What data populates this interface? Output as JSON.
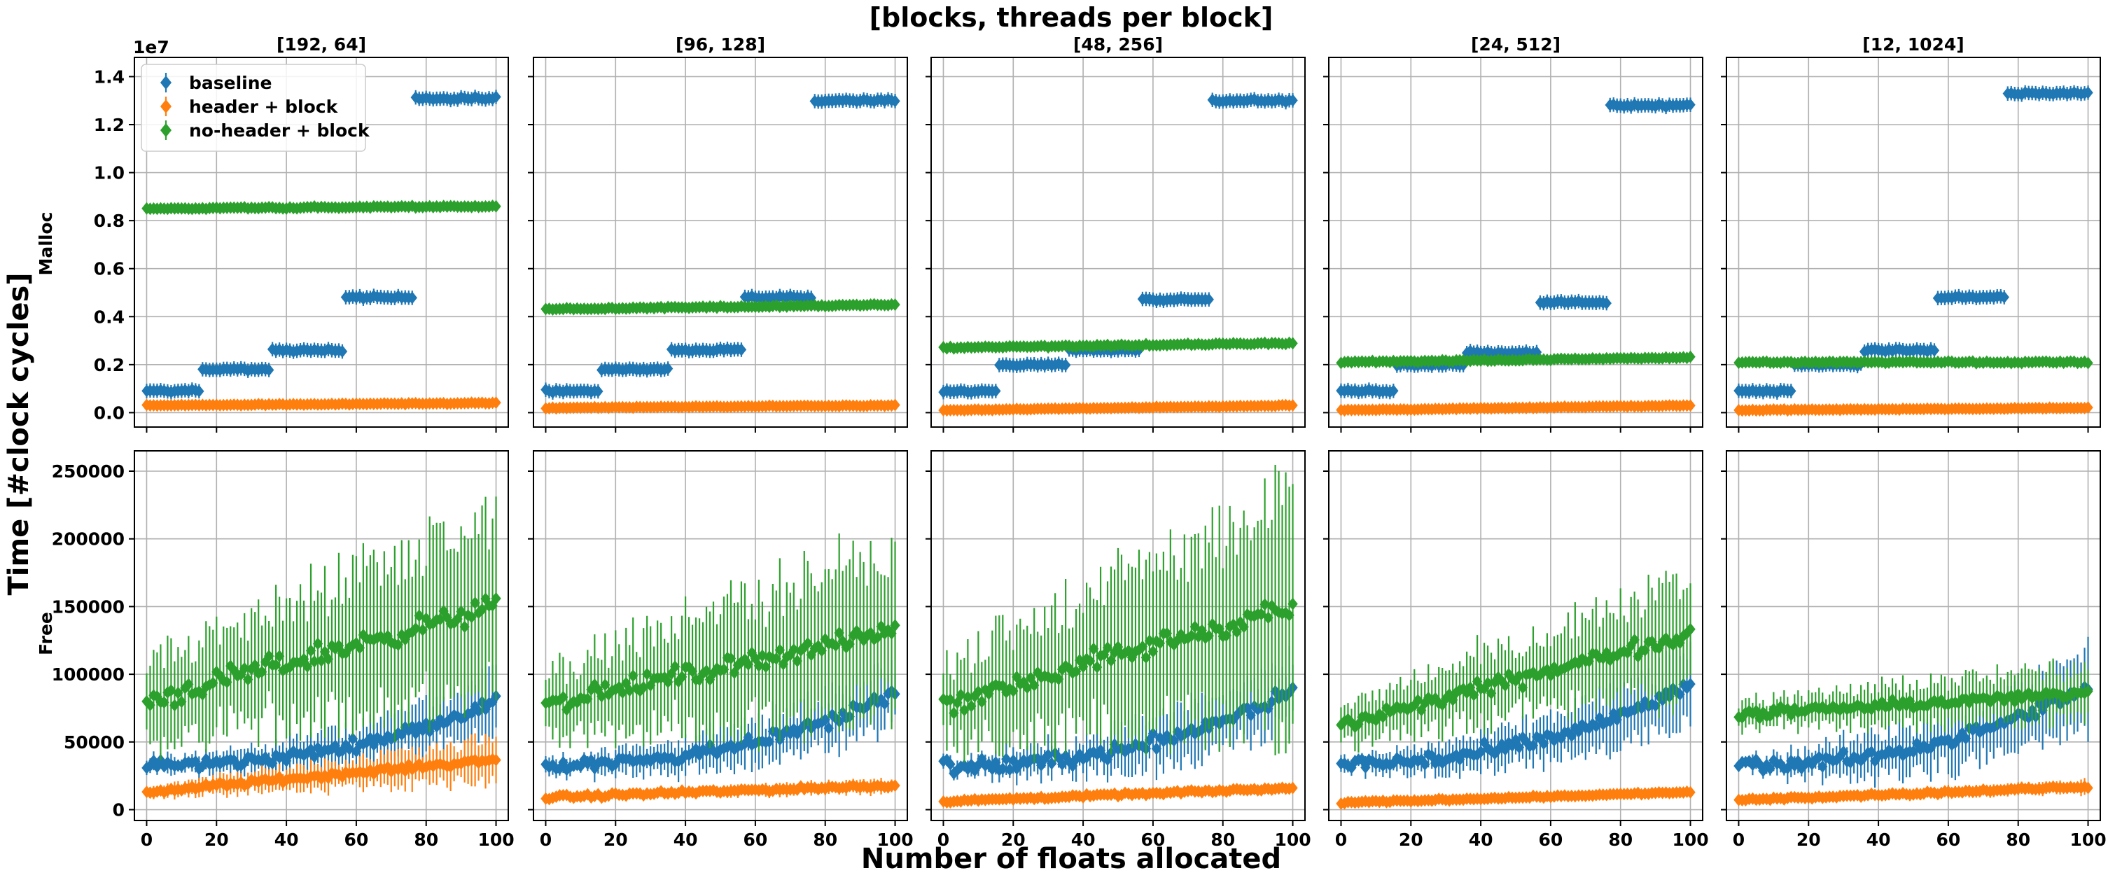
{
  "figure": {
    "suptitle": "[blocks, threads per block]",
    "xlabel": "Number of floats allocated",
    "ylabel": "Time [#clock cycles]",
    "row_labels": [
      "Malloc",
      "Free"
    ],
    "col_titles": [
      "[192, 64]",
      "[96, 128]",
      "[48, 256]",
      "[24, 512]",
      "[12, 1024]"
    ],
    "malloc_offset_label": "1e7"
  },
  "chart_data": {
    "type": "scatter",
    "errorbars": true,
    "grid": true,
    "legend_position": "top-left",
    "series": [
      {
        "name": "baseline",
        "color": "#1f77b4"
      },
      {
        "name": "header + block",
        "color": "#ff7f0e"
      },
      {
        "name": "no-header + block",
        "color": "#2ca02c"
      }
    ],
    "x": {
      "range": [
        0,
        100
      ],
      "step": 1,
      "ticks": [
        0,
        20,
        40,
        60,
        80,
        100
      ],
      "xlim": [
        -3.5,
        103.5
      ]
    },
    "malloc": {
      "ylim": [
        -0.06,
        1.48
      ],
      "y_scale_label": "1e7",
      "yticks": [
        0.0,
        0.2,
        0.4,
        0.6,
        0.8,
        1.0,
        1.2,
        1.4
      ],
      "ytick_labels": [
        "0.0",
        "0.2",
        "0.4",
        "0.6",
        "0.8",
        "1.0",
        "1.2",
        "1.4"
      ],
      "panels": [
        {
          "title": "[192, 64]",
          "baseline_steps": [
            [
              0,
              16,
              0.09
            ],
            [
              16,
              36,
              0.18
            ],
            [
              36,
              57,
              0.26
            ],
            [
              57,
              77,
              0.48
            ],
            [
              77,
              101,
              1.31
            ]
          ],
          "header_block": [
            0.03,
            0.04
          ],
          "noheader_block": [
            0.85,
            0.86
          ],
          "yerr": {
            "baseline": 0.03,
            "header_block": 0.01,
            "noheader_block": 0.015
          }
        },
        {
          "title": "[96, 128]",
          "baseline_steps": [
            [
              0,
              16,
              0.09
            ],
            [
              16,
              36,
              0.18
            ],
            [
              36,
              57,
              0.26
            ],
            [
              57,
              77,
              0.48
            ],
            [
              77,
              101,
              1.3
            ]
          ],
          "header_block": [
            0.02,
            0.03
          ],
          "noheader_block": [
            0.43,
            0.45
          ],
          "yerr": {
            "baseline": 0.03,
            "header_block": 0.01,
            "noheader_block": 0.01
          }
        },
        {
          "title": "[48, 256]",
          "baseline_steps": [
            [
              0,
              16,
              0.09
            ],
            [
              16,
              36,
              0.2
            ],
            [
              36,
              57,
              0.26
            ],
            [
              57,
              77,
              0.47
            ],
            [
              77,
              101,
              1.3
            ]
          ],
          "header_block": [
            0.01,
            0.03
          ],
          "noheader_block": [
            0.27,
            0.29
          ],
          "yerr": {
            "baseline": 0.03,
            "header_block": 0.01,
            "noheader_block": 0.01
          }
        },
        {
          "title": "[24, 512]",
          "baseline_steps": [
            [
              0,
              16,
              0.09
            ],
            [
              16,
              36,
              0.2
            ],
            [
              36,
              57,
              0.25
            ],
            [
              57,
              77,
              0.46
            ],
            [
              77,
              101,
              1.28
            ]
          ],
          "header_block": [
            0.01,
            0.03
          ],
          "noheader_block": [
            0.21,
            0.23
          ],
          "yerr": {
            "baseline": 0.03,
            "header_block": 0.01,
            "noheader_block": 0.01
          }
        },
        {
          "title": "[12, 1024]",
          "baseline_steps": [
            [
              0,
              16,
              0.09
            ],
            [
              16,
              36,
              0.2
            ],
            [
              36,
              57,
              0.26
            ],
            [
              57,
              77,
              0.48
            ],
            [
              77,
              101,
              1.33
            ]
          ],
          "header_block": [
            0.01,
            0.02
          ],
          "noheader_block": [
            0.21,
            0.21
          ],
          "yerr": {
            "baseline": 0.03,
            "header_block": 0.01,
            "noheader_block": 0.01
          }
        }
      ]
    },
    "free": {
      "ylim": [
        -8000,
        265000
      ],
      "yticks": [
        0,
        50000,
        100000,
        150000,
        200000,
        250000
      ],
      "ytick_labels": [
        "0",
        "50000",
        "100000",
        "150000",
        "200000",
        "250000"
      ],
      "panels": [
        {
          "baseline": [
            33000,
            80000
          ],
          "header_block": [
            13000,
            37000
          ],
          "noheader_block": [
            80000,
            150000
          ],
          "jitter": {
            "baseline": 6000,
            "header_block": 3000,
            "noheader_block": 12000
          },
          "yerr": {
            "baseline": [
              5000,
              20000
            ],
            "header_block": [
              4000,
              15000
            ],
            "noheader_block": [
              30000,
              65000
            ]
          }
        },
        {
          "baseline": [
            34000,
            85000
          ],
          "header_block": [
            9000,
            18000
          ],
          "noheader_block": [
            78000,
            132000
          ],
          "jitter": {
            "baseline": 7000,
            "header_block": 2000,
            "noheader_block": 10000
          },
          "yerr": {
            "baseline": [
              5000,
              22000
            ],
            "header_block": [
              2000,
              5000
            ],
            "noheader_block": [
              25000,
              60000
            ]
          }
        },
        {
          "baseline": [
            32000,
            88000
          ],
          "header_block": [
            6000,
            16000
          ],
          "noheader_block": [
            78000,
            150000
          ],
          "jitter": {
            "baseline": 8000,
            "header_block": 1500,
            "noheader_block": 12000
          },
          "yerr": {
            "baseline": [
              5000,
              25000
            ],
            "header_block": [
              1500,
              3000
            ],
            "noheader_block": [
              30000,
              80000
            ]
          }
        },
        {
          "baseline": [
            34000,
            92000
          ],
          "header_block": [
            5000,
            13000
          ],
          "noheader_block": [
            62000,
            130000
          ],
          "jitter": {
            "baseline": 8000,
            "header_block": 1000,
            "noheader_block": 8000
          },
          "yerr": {
            "baseline": [
              5000,
              25000
            ],
            "header_block": [
              1500,
              3000
            ],
            "noheader_block": [
              15000,
              40000
            ]
          }
        },
        {
          "baseline": [
            33000,
            90000
          ],
          "header_block": [
            7000,
            17000
          ],
          "noheader_block": [
            70000,
            86000
          ],
          "jitter": {
            "baseline": 7000,
            "header_block": 1500,
            "noheader_block": 5000
          },
          "yerr": {
            "baseline": [
              5000,
              30000
            ],
            "header_block": [
              2000,
              5000
            ],
            "noheader_block": [
              10000,
              20000
            ]
          }
        }
      ]
    }
  }
}
